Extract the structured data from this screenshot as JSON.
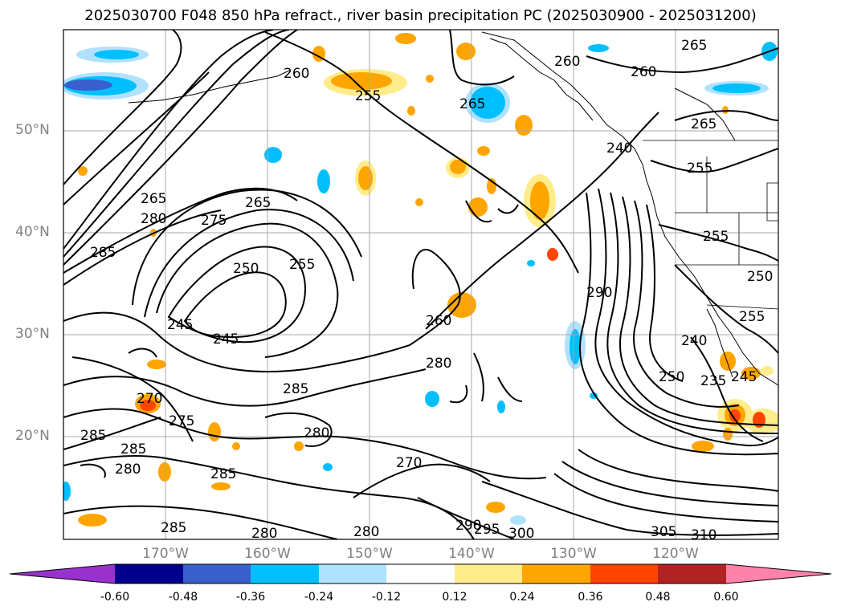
{
  "title": "2025030700 F048 850 hPa refract., river basin precipitation PC (2025030900 - 2025031200)",
  "lat_labels": [
    "50°N",
    "40°N",
    "30°N",
    "20°N"
  ],
  "lon_labels": [
    "170°W",
    "160°W",
    "150°W",
    "140°W",
    "130°W",
    "120°W"
  ],
  "contour_labels": [
    "265",
    "260",
    "255",
    "265",
    "265",
    "265",
    "260",
    "260",
    "265",
    "285",
    "280",
    "275",
    "285",
    "250",
    "255",
    "245",
    "245",
    "260",
    "280",
    "285",
    "270",
    "280",
    "275",
    "270",
    "285",
    "285",
    "280",
    "285",
    "280",
    "280",
    "290",
    "295",
    "300",
    "305",
    "310",
    "290",
    "240",
    "250",
    "235",
    "255",
    "255",
    "250",
    "255",
    "240",
    "245"
  ],
  "colorbar": {
    "tick_labels": [
      "-0.60",
      "-0.48",
      "-0.36",
      "-0.24",
      "-0.12",
      "0.12",
      "0.24",
      "0.36",
      "0.48",
      "0.60"
    ],
    "colors": [
      "#9932cc",
      "#00008b",
      "#3a5fcd",
      "#00bfff",
      "#b0e2ff",
      "#ffffff",
      "#ffec8b",
      "#ffa500",
      "#ff4500",
      "#b22222",
      "#ff82ab"
    ]
  },
  "precip_colors": {
    "neg_light": "#b0e2ff",
    "neg_mid": "#00bfff",
    "neg_dark": "#3a5fcd",
    "pos_light": "#ffec8b",
    "pos_mid": "#ffa500",
    "pos_dark": "#ff4500"
  }
}
